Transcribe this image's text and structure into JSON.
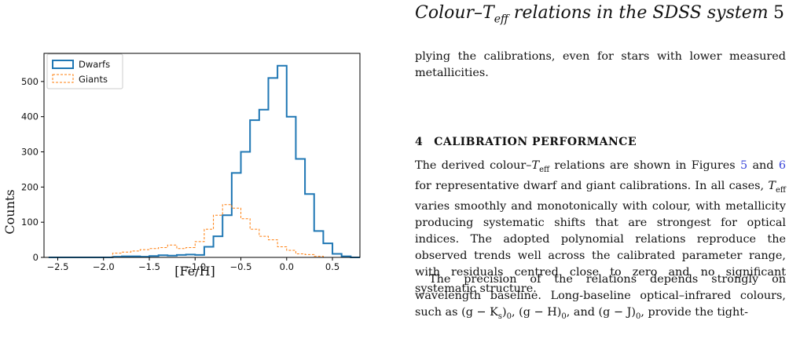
{
  "header": {
    "running_head": "Colour–T",
    "running_head_sub": "eff",
    "running_head_rest": " relations in the SDSS system",
    "page_number": "5"
  },
  "para1": "plying the calibrations, even for stars with lower measured metallicities.",
  "section": {
    "number": "4",
    "title": "CALIBRATION PERFORMANCE"
  },
  "para2": {
    "a": "The derived colour–",
    "teff": "T",
    "eff": "eff",
    "b": " relations are shown in Figures ",
    "fig5": "5",
    "and": " and ",
    "fig6": "6",
    "c": " for representative dwarf and giant calibrations. In all cases, ",
    "d": " varies smoothly and monotonically with colour, with metallicity producing systematic shifts that are strongest for optical indices. The adopted polynomial relations reproduce the observed trends well across the calibrated parameter range, with residuals centred close to zero and no significant systematic structure."
  },
  "para3": "The precision of the relations depends strongly on wavelength baseline. Long-baseline optical–infrared colours, such as (g − K",
  "para3_s": "s",
  "para3_b": ")",
  "para3_0a": "0",
  "para3_c": ", (g − H)",
  "para3_0b": "0",
  "para3_d": ", and (g − J)",
  "para3_0c": "0",
  "para3_e": ", provide the tight-",
  "chart_data": {
    "type": "histogram",
    "xlabel": "[Fe/H]",
    "ylabel": "Counts",
    "xlim": [
      -2.65,
      0.8
    ],
    "ylim": [
      0,
      580
    ],
    "xticks": [
      "−2.5",
      "−2.0",
      "−1.5",
      "−1.0",
      "−0.5",
      "0.0",
      "0.5"
    ],
    "xtick_values": [
      -2.5,
      -2.0,
      -1.5,
      -1.0,
      -0.5,
      0.0,
      0.5
    ],
    "yticks": [
      "0",
      "100",
      "200",
      "300",
      "400",
      "500"
    ],
    "ytick_values": [
      0,
      100,
      200,
      300,
      400,
      500
    ],
    "bin_edges": [
      -2.6,
      -2.5,
      -2.4,
      -2.3,
      -2.2,
      -2.1,
      -2.0,
      -1.9,
      -1.8,
      -1.7,
      -1.6,
      -1.5,
      -1.4,
      -1.3,
      -1.2,
      -1.1,
      -1.0,
      -0.9,
      -0.8,
      -0.7,
      -0.6,
      -0.5,
      -0.4,
      -0.3,
      -0.2,
      -0.1,
      0.0,
      0.1,
      0.2,
      0.3,
      0.4,
      0.5,
      0.6,
      0.7,
      0.8
    ],
    "legend_position": "upper-left",
    "series": [
      {
        "name": "Dwarfs",
        "color": "#1f77b4",
        "style": "solid",
        "values": [
          0,
          0,
          0,
          0,
          0,
          0,
          0,
          2,
          3,
          3,
          2,
          4,
          6,
          5,
          7,
          8,
          7,
          30,
          60,
          120,
          240,
          300,
          390,
          420,
          510,
          545,
          400,
          280,
          180,
          75,
          40,
          10,
          3,
          0
        ]
      },
      {
        "name": "Giants",
        "color": "#ff7f0e",
        "style": "dashed",
        "values": [
          0,
          0,
          0,
          0,
          0,
          0,
          0,
          12,
          15,
          18,
          22,
          25,
          28,
          35,
          25,
          28,
          45,
          80,
          120,
          150,
          140,
          110,
          80,
          60,
          50,
          30,
          20,
          10,
          8,
          3,
          0,
          0,
          0,
          0
        ]
      }
    ]
  }
}
